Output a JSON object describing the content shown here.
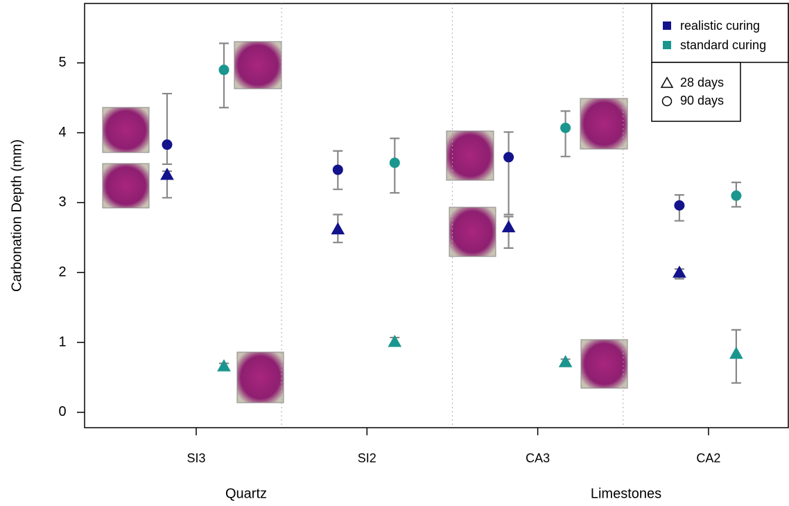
{
  "chart_data": {
    "type": "errorbar",
    "y_label": "Carbonation Depth (mm)",
    "categories": [
      "SI3",
      "SI2",
      "CA3",
      "CA2"
    ],
    "groups": [
      "Quartz",
      "Limestones"
    ],
    "ylim": [
      -0.22,
      5.85
    ],
    "yticks": [
      0,
      1,
      2,
      3,
      4,
      5
    ],
    "markers": [
      {
        "name": "28 days",
        "marker": "triangle"
      },
      {
        "name": "90 days",
        "marker": "circle"
      }
    ],
    "series": [
      {
        "name": "realistic curing",
        "color": "#13138c",
        "by_age": [
          {
            "values": [
              3.4,
              2.62,
              2.65,
              2.0
            ],
            "low": [
              3.07,
              2.43,
              2.35,
              1.91
            ],
            "high": [
              3.45,
              2.83,
              2.8,
              2.05
            ]
          },
          {
            "values": [
              3.83,
              3.47,
              3.65,
              2.96
            ],
            "low": [
              3.55,
              3.19,
              2.83,
              2.74
            ],
            "high": [
              4.56,
              3.74,
              4.01,
              3.11
            ]
          }
        ]
      },
      {
        "name": "standard curing",
        "color": "#1a968e",
        "by_age": [
          {
            "values": [
              0.66,
              1.01,
              0.72,
              0.84
            ],
            "low": [
              0.62,
              0.96,
              0.68,
              0.42
            ],
            "high": [
              0.7,
              1.07,
              0.76,
              1.18
            ]
          },
          {
            "values": [
              4.9,
              3.57,
              4.07,
              3.1
            ],
            "low": [
              4.36,
              3.14,
              3.66,
              2.94
            ],
            "high": [
              5.28,
              3.92,
              4.31,
              3.29
            ]
          }
        ]
      }
    ]
  }
}
